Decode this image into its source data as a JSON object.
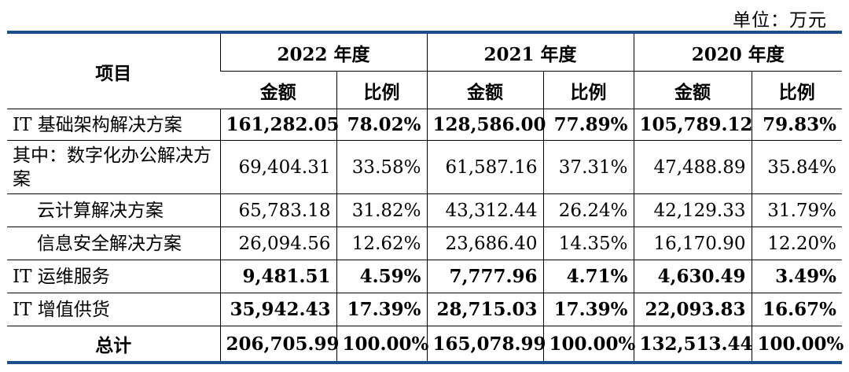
{
  "unit_label": "单位：万元",
  "header": {
    "item": "项目",
    "years": [
      "2022 年度",
      "2021 年度",
      "2020 年度"
    ],
    "amount": "金额",
    "ratio": "比例"
  },
  "rows": [
    {
      "name": "IT 基础架构解决方案",
      "bold": true,
      "indent": false,
      "v": [
        "161,282.05",
        "78.02%",
        "128,586.00",
        "77.89%",
        "105,789.12",
        "79.83%"
      ]
    },
    {
      "name": "其中：数字化办公解决方案",
      "bold": false,
      "indent": false,
      "v": [
        "69,404.31",
        "33.58%",
        "61,587.16",
        "37.31%",
        "47,488.89",
        "35.84%"
      ]
    },
    {
      "name": "云计算解决方案",
      "bold": false,
      "indent": true,
      "v": [
        "65,783.18",
        "31.82%",
        "43,312.44",
        "26.24%",
        "42,129.33",
        "31.79%"
      ]
    },
    {
      "name": "信息安全解决方案",
      "bold": false,
      "indent": true,
      "v": [
        "26,094.56",
        "12.62%",
        "23,686.40",
        "14.35%",
        "16,170.90",
        "12.20%"
      ]
    },
    {
      "name": "IT 运维服务",
      "bold": true,
      "indent": false,
      "v": [
        "9,481.51",
        "4.59%",
        "7,777.96",
        "4.71%",
        "4,630.49",
        "3.49%"
      ]
    },
    {
      "name": "IT 增值供货",
      "bold": true,
      "indent": false,
      "v": [
        "35,942.43",
        "17.39%",
        "28,715.03",
        "17.39%",
        "22,093.83",
        "16.67%"
      ]
    }
  ],
  "total": {
    "name": "总计",
    "v": [
      "206,705.99",
      "100.00%",
      "165,078.99",
      "100.00%",
      "132,513.44",
      "100.00%"
    ]
  }
}
